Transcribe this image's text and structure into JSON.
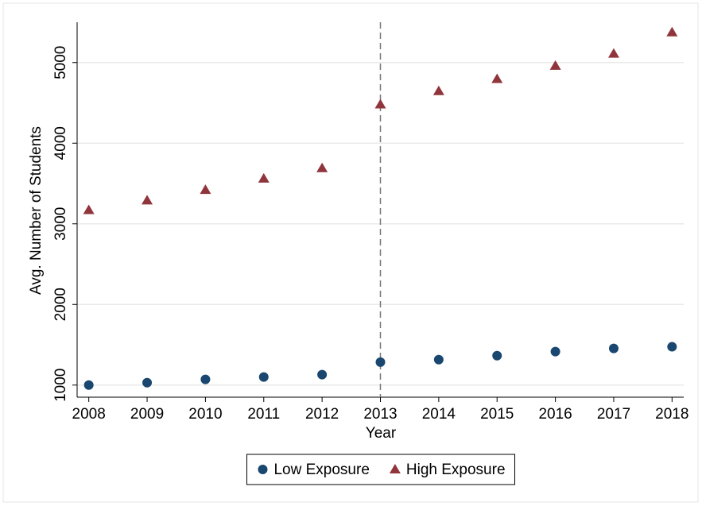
{
  "chart_data": {
    "type": "scatter",
    "x_label": "Year",
    "y_label": "Avg. Number of Students",
    "x": [
      2008,
      2009,
      2010,
      2011,
      2012,
      2013,
      2014,
      2015,
      2016,
      2017,
      2018
    ],
    "series": [
      {
        "name": "Low Exposure",
        "color": "#1a476f",
        "marker": "circle",
        "values": [
          1000,
          1030,
          1070,
          1100,
          1130,
          1285,
          1315,
          1365,
          1415,
          1455,
          1475
        ]
      },
      {
        "name": "High Exposure",
        "color": "#90353b",
        "marker": "triangle",
        "values": [
          3170,
          3290,
          3420,
          3560,
          3690,
          4480,
          4645,
          4795,
          4960,
          5110,
          5375
        ]
      }
    ],
    "xlim": [
      2007.8,
      2018.2
    ],
    "xticks": [
      2008,
      2009,
      2010,
      2011,
      2012,
      2013,
      2014,
      2015,
      2016,
      2017,
      2018
    ],
    "ylim": [
      850,
      5500
    ],
    "yticks": [
      1000,
      2000,
      3000,
      4000,
      5000
    ],
    "vline": 2013,
    "grid": true,
    "legend": "bottom"
  }
}
